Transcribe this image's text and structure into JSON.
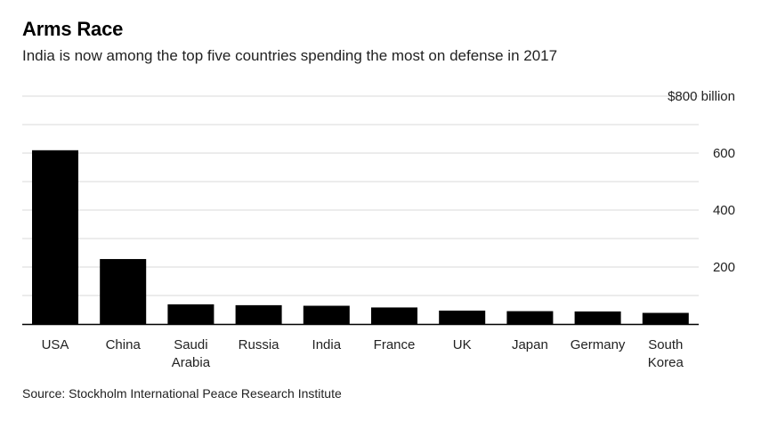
{
  "header": {
    "title": "Arms Race",
    "subtitle": "India is now among the top five countries spending the most on defense in 2017"
  },
  "footer": {
    "source": "Source: Stockholm International Peace Research Institute"
  },
  "colors": {
    "bar": "#000000",
    "grid": "#d9d9d9",
    "axis": "#000000"
  },
  "chart_data": {
    "type": "bar",
    "categories": [
      "USA",
      "China",
      "Saudi Arabia",
      "Russia",
      "India",
      "France",
      "UK",
      "Japan",
      "Germany",
      "South Korea"
    ],
    "category_label_lines": [
      [
        "USA"
      ],
      [
        "China"
      ],
      [
        "Saudi",
        "Arabia"
      ],
      [
        "Russia"
      ],
      [
        "India"
      ],
      [
        "France"
      ],
      [
        "UK"
      ],
      [
        "Japan"
      ],
      [
        "Germany"
      ],
      [
        "South",
        "Korea"
      ]
    ],
    "values": [
      610,
      228,
      69,
      66,
      64,
      58,
      47,
      45,
      44,
      39
    ],
    "ylim": [
      0,
      800
    ],
    "yticks": [
      200,
      400,
      600,
      800
    ],
    "ytick_labels": [
      "200",
      "400",
      "600",
      "$800 billion"
    ],
    "minor_gridlines": [
      100,
      300,
      500,
      700
    ],
    "grid": true,
    "title": "Arms Race",
    "xlabel": "",
    "ylabel": ""
  }
}
